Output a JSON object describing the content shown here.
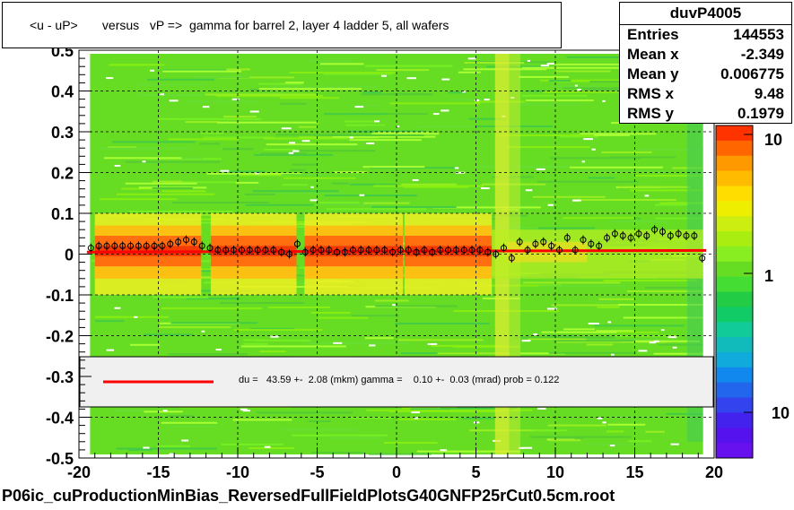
{
  "title": "<u - uP>       versus   vP =>  gamma for barrel 2, layer 4 ladder 5, all wafers",
  "footer": "P06ic_cuProductionMinBias_ReversedFullFieldPlotsG40GNFP25rCut0.5cm.root",
  "stats": {
    "name": "duvP4005",
    "rows": [
      {
        "key": "Entries",
        "value": "144553"
      },
      {
        "key": "Mean x",
        "value": "-2.349"
      },
      {
        "key": "Mean y",
        "value": "0.006775"
      },
      {
        "key": "RMS x",
        "value": "9.48"
      },
      {
        "key": "RMS y",
        "value": "0.1979"
      }
    ]
  },
  "fit_legend": "du =   43.59 +-  2.08 (mkm) gamma =    0.10 +-  0.03 (mrad) prob = 0.122",
  "colors": {
    "fit_line": "#ff0000",
    "profile_marker": "#000000"
  },
  "chart_data": {
    "type": "heatmap",
    "title": "<u - uP>       versus   vP =>  gamma for barrel 2, layer 4 ladder 5, all wafers",
    "xlabel": "",
    "ylabel": "",
    "xlim": [
      -20,
      20
    ],
    "ylim": [
      -0.5,
      0.5
    ],
    "x_ticks": [
      "-20",
      "-15",
      "-10",
      "-5",
      "0",
      "5",
      "10",
      "15",
      "20"
    ],
    "y_ticks": [
      "-0.5",
      "-0.4",
      "-0.3",
      "-0.2",
      "-0.1",
      "0",
      "0.1",
      "0.2",
      "0.3",
      "0.4",
      "0.5"
    ],
    "grid": true,
    "colorbar": {
      "scale": "log",
      "ticks": [
        "1",
        "10"
      ],
      "partial_tick": "10"
    },
    "profile": {
      "x": [
        -19.25,
        -18.75,
        -18.25,
        -17.75,
        -17.25,
        -16.75,
        -16.25,
        -15.75,
        -15.25,
        -14.75,
        -14.25,
        -13.75,
        -13.25,
        -12.75,
        -12.25,
        -11.75,
        -11.25,
        -10.75,
        -10.25,
        -9.75,
        -9.25,
        -8.75,
        -8.25,
        -7.75,
        -7.25,
        -6.75,
        -6.25,
        -5.75,
        -5.25,
        -4.75,
        -4.25,
        -3.75,
        -3.25,
        -2.75,
        -2.25,
        -1.75,
        -1.25,
        -0.75,
        -0.25,
        0.25,
        0.75,
        1.25,
        1.75,
        2.25,
        2.75,
        3.25,
        3.75,
        4.25,
        4.75,
        5.25,
        5.75,
        6.25,
        6.75,
        7.25,
        7.75,
        8.25,
        8.75,
        9.25,
        9.75,
        10.25,
        10.75,
        11.25,
        11.75,
        12.25,
        12.75,
        13.25,
        13.75,
        14.25,
        14.75,
        15.25,
        15.75,
        16.25,
        16.75,
        17.25,
        17.75,
        18.25,
        18.75,
        19.25
      ],
      "y": [
        0.015,
        0.02,
        0.02,
        0.02,
        0.02,
        0.02,
        0.02,
        0.02,
        0.02,
        0.02,
        0.025,
        0.03,
        0.035,
        0.03,
        0.02,
        0.015,
        0.01,
        0.01,
        0.01,
        0.01,
        0.01,
        0.01,
        0.01,
        0.01,
        0.005,
        0.0,
        0.025,
        0.005,
        0.01,
        0.01,
        0.01,
        0.005,
        0.005,
        0.01,
        0.01,
        0.01,
        0.01,
        0.01,
        0.005,
        0.01,
        0.01,
        0.005,
        0.01,
        0.005,
        0.01,
        0.01,
        0.01,
        0.01,
        0.01,
        0.01,
        0.005,
        0.0,
        0.015,
        -0.01,
        0.03,
        0.01,
        0.025,
        0.03,
        0.02,
        0.01,
        0.04,
        0.01,
        0.035,
        0.025,
        0.02,
        0.04,
        0.05,
        0.045,
        0.04,
        0.05,
        0.045,
        0.06,
        0.055,
        0.045,
        0.05,
        0.045,
        0.045,
        -0.01
      ]
    },
    "fit_line": {
      "du_mkm": 43.59,
      "du_err": 2.08,
      "gamma_mrad": 0.1,
      "gamma_err": 0.03,
      "prob": 0.122,
      "y_at_xmin": 0.005,
      "y_at_xmax": 0.009
    }
  }
}
